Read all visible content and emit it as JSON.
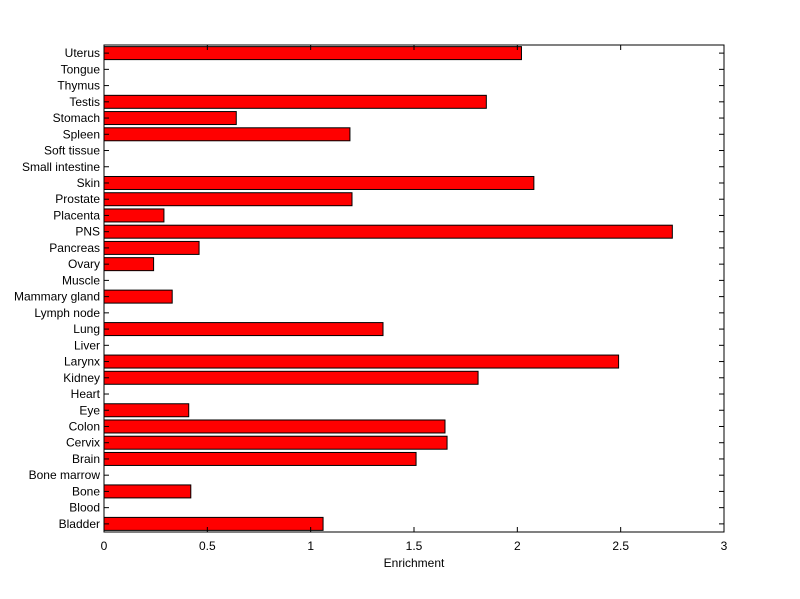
{
  "chart_data": {
    "type": "bar",
    "orientation": "horizontal",
    "categories": [
      "Uterus",
      "Tongue",
      "Thymus",
      "Testis",
      "Stomach",
      "Spleen",
      "Soft tissue",
      "Small intestine",
      "Skin",
      "Prostate",
      "Placenta",
      "PNS",
      "Pancreas",
      "Ovary",
      "Muscle",
      "Mammary gland",
      "Lymph node",
      "Lung",
      "Liver",
      "Larynx",
      "Kidney",
      "Heart",
      "Eye",
      "Colon",
      "Cervix",
      "Brain",
      "Bone marrow",
      "Bone",
      "Blood",
      "Bladder"
    ],
    "values": [
      2.02,
      0,
      0,
      1.85,
      0.64,
      1.19,
      0,
      0,
      2.08,
      1.2,
      0.29,
      2.75,
      0.46,
      0.24,
      0,
      0.33,
      0,
      1.35,
      0,
      2.49,
      1.81,
      0,
      0.41,
      1.65,
      1.66,
      1.51,
      0,
      0.42,
      0,
      1.06
    ],
    "xlabel": "Enrichment",
    "xlim": [
      0,
      3
    ],
    "xticks": [
      0,
      0.5,
      1,
      1.5,
      2,
      2.5,
      3
    ],
    "xtick_labels": [
      "0",
      "0.5",
      "1",
      "1.5",
      "2",
      "2.5",
      "3"
    ],
    "grid": false,
    "legend": "none",
    "bar_color": "#ff0000",
    "edge_color": "#000000"
  }
}
